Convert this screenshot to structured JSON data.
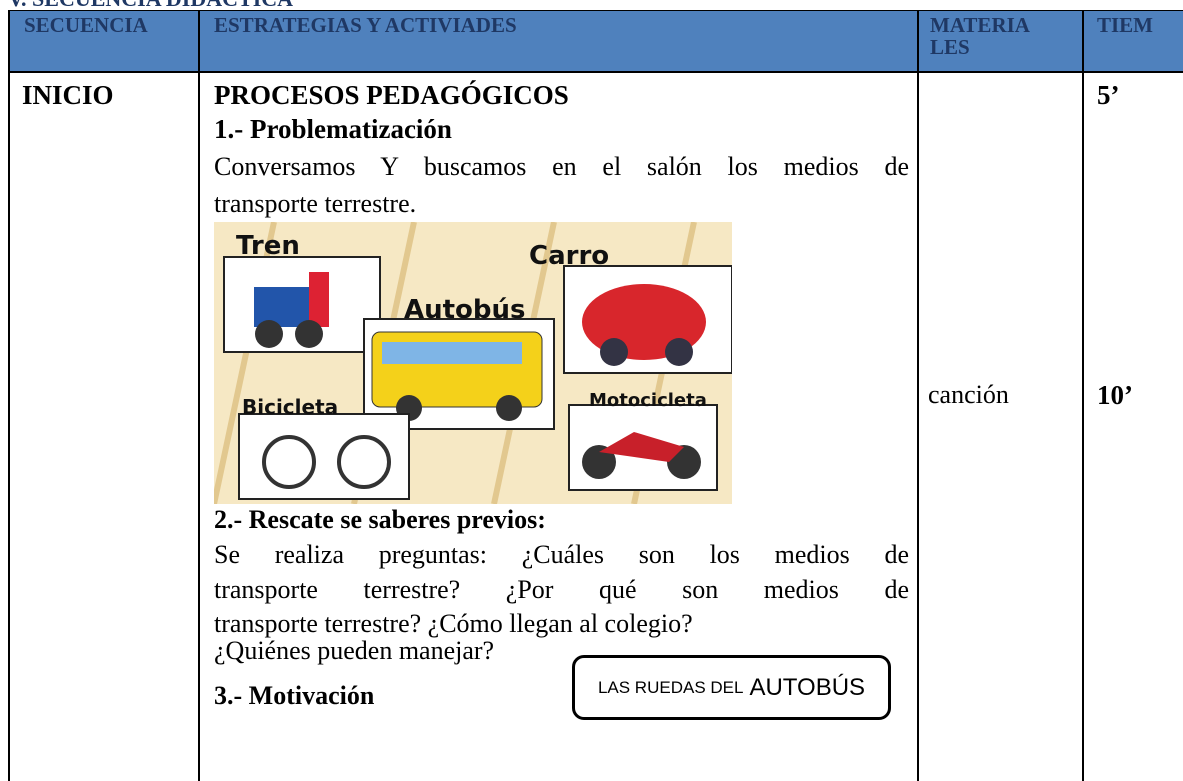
{
  "header": {
    "title": "V. SECUENCIA DIDÁCTICA"
  },
  "table": {
    "headers": [
      "SECUENCIA",
      "ESTRATEGIAS Y ACTIVIADES",
      [
        "MATERIA",
        "LES"
      ],
      "TIEM"
    ],
    "rows": [
      {
        "sequence": "INICIO",
        "activities": {
          "heading": "PROCESOS PEDAGÓGICOS",
          "step1": {
            "title": "1.- Problematización",
            "lines": [
              "Conversamos Y buscamos en el salón los medios de",
              "transporte terrestre."
            ]
          },
          "image": {
            "labels": [
              "Tren",
              "Carro",
              "Autobús",
              "Bicicleta",
              "Motocicleta"
            ]
          },
          "step2": {
            "title": "2.- Rescate se saberes previos:",
            "lines": [
              "Se realiza preguntas: ¿Cuáles son los medios de",
              "transporte terrestre? ¿Por qué son medios de",
              "transporte terrestre? ¿Cómo llegan al colegio?",
              "¿Quiénes pueden manejar?"
            ]
          },
          "callout": [
            "LAS RUEDAS DEL",
            "AUTOBÚS"
          ],
          "step3": {
            "title": "3.- Motivación"
          }
        },
        "materials": "canción",
        "times": [
          "5’",
          "10’"
        ]
      }
    ]
  }
}
